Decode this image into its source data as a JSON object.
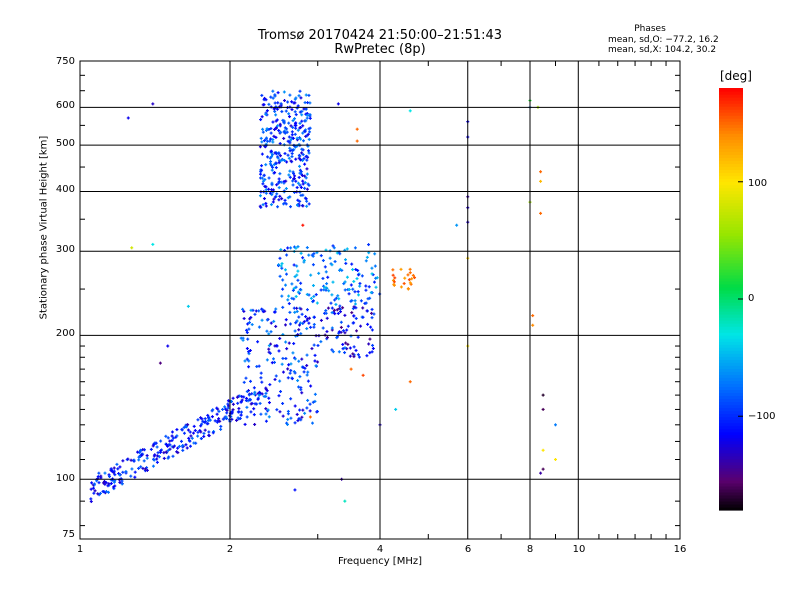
{
  "header": {
    "title_line1": "Tromsø 20170424 21:50:00–21:51:43",
    "title_line2": "RwPretec (8p)",
    "stats_title": "Phases",
    "stats_o": "mean, sd,O: −77.2, 16.2",
    "stats_x": "mean, sd,X: 104.2, 30.2"
  },
  "colorbar": {
    "unit": "[deg]",
    "ticks": [
      "100",
      "0",
      "−100"
    ],
    "tick_values": [
      100,
      0,
      -100
    ],
    "range": [
      -180,
      180
    ]
  },
  "chart_data": {
    "type": "scatter",
    "title": "Tromsø 20170424 21:50:00–21:51:43",
    "subtitle": "RwPretec (8p)",
    "xlabel": "Frequency [MHz]",
    "ylabel": "Stationary phase Virtual Height [km]",
    "x_scale": "log",
    "y_scale": "log",
    "xlim": [
      1,
      16
    ],
    "ylim": [
      75,
      750
    ],
    "x_ticks": [
      1,
      2,
      4,
      6,
      8,
      10,
      16
    ],
    "x_tick_labels": [
      "1",
      "2",
      "4",
      "6",
      "8",
      "10",
      "16"
    ],
    "y_ticks": [
      75,
      100,
      200,
      300,
      400,
      500,
      600,
      750
    ],
    "y_tick_labels": [
      "75",
      "100",
      "200",
      "300",
      "400",
      "500",
      "600",
      "750"
    ],
    "grid": true,
    "color_by": "phase (deg)",
    "clusters": [
      {
        "f": [
          2.3,
          2.9
        ],
        "h": [
          370,
          650
        ],
        "n": 360,
        "phase": [
          -130,
          -60
        ]
      },
      {
        "f": [
          1.05,
          2.3
        ],
        "h": [
          95,
          150
        ],
        "shape": "rising",
        "n": 300,
        "phase": [
          -135,
          -70
        ]
      },
      {
        "f": [
          2.1,
          3.0
        ],
        "h": [
          130,
          230
        ],
        "n": 220,
        "phase": [
          -135,
          -60
        ]
      },
      {
        "f": [
          3.0,
          3.9
        ],
        "h": [
          180,
          230
        ],
        "n": 90,
        "phase": [
          -150,
          -70
        ]
      },
      {
        "f": [
          2.5,
          4.0
        ],
        "h": [
          230,
          310
        ],
        "n": 160,
        "phase": [
          -110,
          -40
        ]
      },
      {
        "f": [
          4.2,
          4.7
        ],
        "h": [
          250,
          275
        ],
        "n": 22,
        "phase": [
          130,
          160
        ]
      }
    ],
    "points": [
      {
        "f": 1.25,
        "h": 570,
        "p": -120
      },
      {
        "f": 1.4,
        "h": 610,
        "p": -130
      },
      {
        "f": 1.4,
        "h": 310,
        "p": -30
      },
      {
        "f": 1.27,
        "h": 305,
        "p": 80
      },
      {
        "f": 1.5,
        "h": 190,
        "p": -120
      },
      {
        "f": 1.45,
        "h": 175,
        "p": -150
      },
      {
        "f": 1.65,
        "h": 230,
        "p": -40
      },
      {
        "f": 2.8,
        "h": 340,
        "p": 175
      },
      {
        "f": 3.3,
        "h": 610,
        "p": -120
      },
      {
        "f": 3.6,
        "h": 540,
        "p": 150
      },
      {
        "f": 3.6,
        "h": 510,
        "p": 150
      },
      {
        "f": 3.5,
        "h": 170,
        "p": 150
      },
      {
        "f": 3.7,
        "h": 165,
        "p": 160
      },
      {
        "f": 3.4,
        "h": 90,
        "p": -20
      },
      {
        "f": 3.35,
        "h": 100,
        "p": -140
      },
      {
        "f": 2.7,
        "h": 95,
        "p": -110
      },
      {
        "f": 2.9,
        "h": 135,
        "p": 150
      },
      {
        "f": 4.3,
        "h": 140,
        "p": -40
      },
      {
        "f": 4.6,
        "h": 160,
        "p": 150
      },
      {
        "f": 4.0,
        "h": 130,
        "p": -130
      },
      {
        "f": 4.6,
        "h": 590,
        "p": -30
      },
      {
        "f": 5.7,
        "h": 340,
        "p": -60
      },
      {
        "f": 6.0,
        "h": 560,
        "p": -120
      },
      {
        "f": 6.0,
        "h": 520,
        "p": -120
      },
      {
        "f": 6.0,
        "h": 390,
        "p": -140
      },
      {
        "f": 6.0,
        "h": 370,
        "p": -130
      },
      {
        "f": 6.0,
        "h": 345,
        "p": -130
      },
      {
        "f": 6.0,
        "h": 290,
        "p": 110
      },
      {
        "f": 6.0,
        "h": 190,
        "p": 100
      },
      {
        "f": 8.0,
        "h": 620,
        "p": 20
      },
      {
        "f": 8.0,
        "h": 600,
        "p": -60
      },
      {
        "f": 8.3,
        "h": 600,
        "p": 60
      },
      {
        "f": 8.0,
        "h": 380,
        "p": 60
      },
      {
        "f": 8.4,
        "h": 440,
        "p": 150
      },
      {
        "f": 8.4,
        "h": 420,
        "p": 120
      },
      {
        "f": 8.4,
        "h": 360,
        "p": 150
      },
      {
        "f": 8.1,
        "h": 220,
        "p": 150
      },
      {
        "f": 8.1,
        "h": 210,
        "p": 140
      },
      {
        "f": 8.5,
        "h": 150,
        "p": -170
      },
      {
        "f": 8.5,
        "h": 140,
        "p": -160
      },
      {
        "f": 9.0,
        "h": 130,
        "p": -70
      },
      {
        "f": 8.5,
        "h": 115,
        "p": 100
      },
      {
        "f": 9.0,
        "h": 110,
        "p": 100
      },
      {
        "f": 8.5,
        "h": 105,
        "p": -160
      },
      {
        "f": 8.4,
        "h": 103,
        "p": -140
      }
    ]
  }
}
